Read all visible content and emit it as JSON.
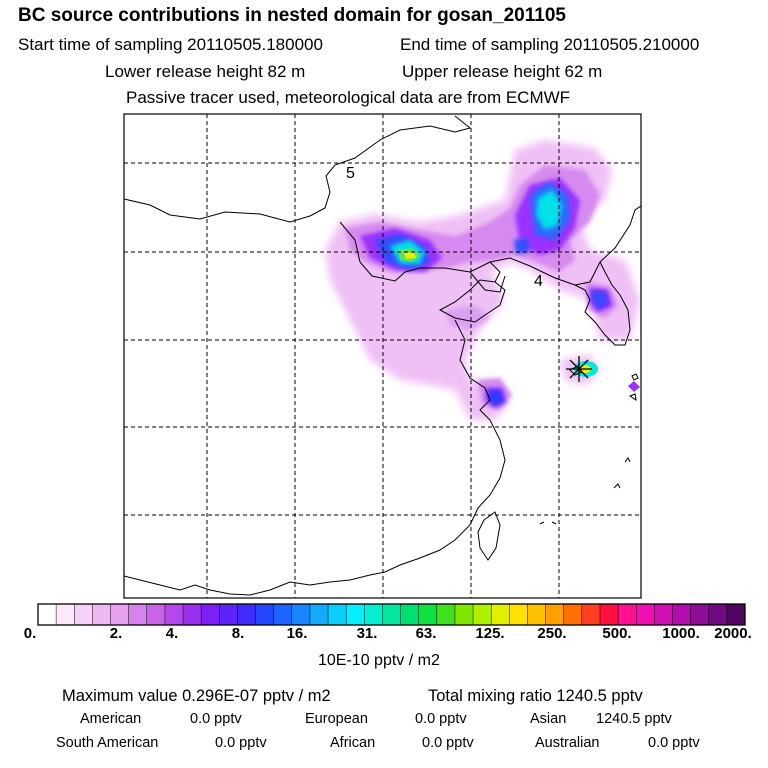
{
  "header": {
    "title": "BC  source contributions in nested domain for gosan_201105",
    "start_time": "Start time of sampling 20110505.180000",
    "end_time": "End time of sampling 20110505.210000",
    "lower_height": "Lower release height   82 m",
    "upper_height": "Upper release height   62 m",
    "tracer_note": "Passive tracer used, meteorological data are from ECMWF"
  },
  "map": {
    "grid_labels": [
      "5",
      "4"
    ],
    "colors": {
      "light_magenta": "#e9b8f5",
      "magenta": "#c060f0",
      "violet": "#9b30ff",
      "blue": "#3050ff",
      "cyan": "#00e0e8",
      "green": "#50e070",
      "yellow": "#e8f000"
    }
  },
  "colorbar": {
    "labels": [
      "0.",
      "2.",
      "4.",
      "8.",
      "16.",
      "31.",
      "63.",
      "125.",
      "250.",
      "500.",
      "1000.",
      "2000."
    ],
    "colors": [
      "#ffffff",
      "#fbe8fb",
      "#f5d0f7",
      "#efb8f3",
      "#e79ff0",
      "#d883ec",
      "#c864ea",
      "#b548ed",
      "#9a30f0",
      "#7d22f4",
      "#5f22f7",
      "#3d2cfb",
      "#2446ff",
      "#1c64ff",
      "#1887ff",
      "#13aaff",
      "#0ccdff",
      "#05f0ff",
      "#00f0d0",
      "#00e8a0",
      "#00e070",
      "#10e040",
      "#40e020",
      "#80e800",
      "#b0f000",
      "#e0f000",
      "#ffe000",
      "#ffc000",
      "#ffa000",
      "#ff7000",
      "#ff4020",
      "#ff1040",
      "#ff1090",
      "#f010b0",
      "#d010b0",
      "#b00ea8",
      "#8e0c96",
      "#700a80",
      "#500660"
    ],
    "unit": "10E-10 pptv / m2"
  },
  "stats": {
    "max_value": "Maximum value  0.296E-07 pptv / m2",
    "total_mixing": "Total mixing ratio     1240.5 pptv"
  },
  "regions": [
    {
      "name": "American",
      "value": "0.0 pptv"
    },
    {
      "name": "European",
      "value": "0.0 pptv"
    },
    {
      "name": "Asian",
      "value": "1240.5 pptv"
    },
    {
      "name": "South American",
      "value": "0.0 pptv"
    },
    {
      "name": "African",
      "value": "0.0 pptv"
    },
    {
      "name": "Australian",
      "value": "0.0 pptv"
    }
  ]
}
